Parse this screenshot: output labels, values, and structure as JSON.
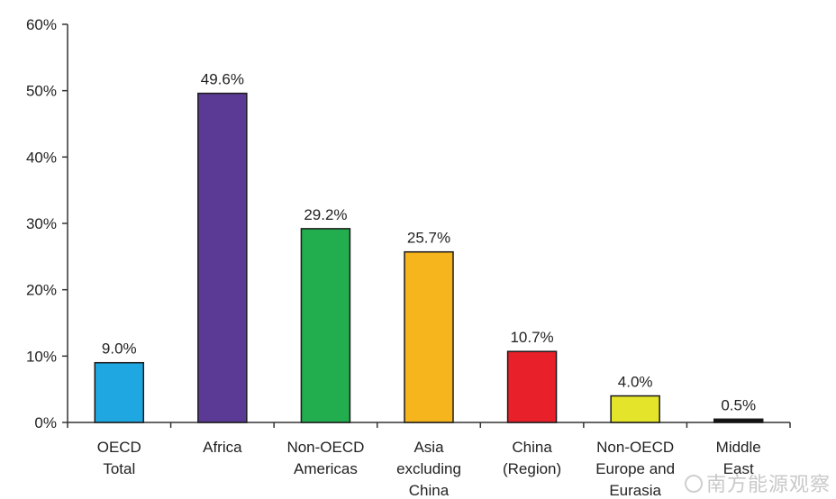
{
  "chart_data": {
    "type": "bar",
    "title": "",
    "xlabel": "",
    "ylabel": "",
    "ylim": [
      0,
      60
    ],
    "yticks": [
      "0%",
      "10%",
      "20%",
      "30%",
      "40%",
      "50%",
      "60%"
    ],
    "grid": false,
    "legend": "none",
    "categories": [
      [
        "OECD",
        "Total"
      ],
      [
        "Africa"
      ],
      [
        "Non-OECD",
        "Americas"
      ],
      [
        "Asia",
        "excluding",
        "China"
      ],
      [
        "China",
        "(Region)"
      ],
      [
        "Non-OECD",
        "Europe and",
        "Eurasia"
      ],
      [
        "Middle",
        "East"
      ]
    ],
    "values": [
      9.0,
      49.6,
      29.2,
      25.7,
      10.7,
      4.0,
      0.5
    ],
    "data_labels": [
      "9.0%",
      "49.6%",
      "29.2%",
      "25.7%",
      "10.7%",
      "4.0%",
      "0.5%"
    ],
    "colors": [
      "#1ea7e1",
      "#5b3a96",
      "#22ad4f",
      "#f7b51d",
      "#e8202a",
      "#e4e42a",
      "#111111"
    ]
  },
  "watermark": {
    "text": "南方能源观察",
    "icon": "wechat-icon"
  }
}
